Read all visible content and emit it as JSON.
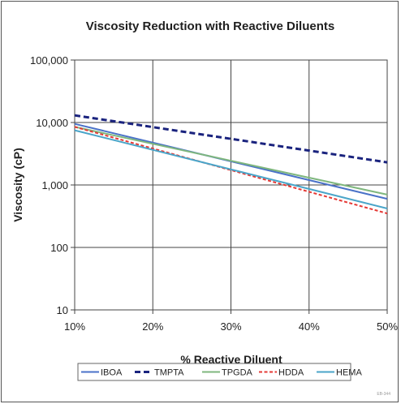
{
  "chart_data": {
    "type": "line",
    "title": "Viscosity Reduction with Reactive Diluents",
    "xlabel": "% Reactive Diluent",
    "ylabel": "Viscosity (cP)",
    "x": [
      10,
      50
    ],
    "xlim": [
      10,
      50
    ],
    "ylim": [
      10,
      100000
    ],
    "yscale": "log",
    "grid": true,
    "legend_position": "bottom",
    "xticks": [
      "10%",
      "20%",
      "30%",
      "40%",
      "50%"
    ],
    "yticks": [
      "10",
      "100",
      "1,000",
      "10,000",
      "100,000"
    ],
    "series": [
      {
        "name": "IBOA",
        "values": [
          9500,
          600
        ],
        "color": "#4a72c8",
        "dash": "solid"
      },
      {
        "name": "TMPTA",
        "values": [
          13000,
          2300
        ],
        "color": "#1a237e",
        "dash": "dashed"
      },
      {
        "name": "TPGDA",
        "values": [
          8500,
          700
        ],
        "color": "#7fb77e",
        "dash": "solid"
      },
      {
        "name": "HDDA",
        "values": [
          8500,
          350
        ],
        "color": "#e53935",
        "dash": "dotted"
      },
      {
        "name": "HEMA",
        "values": [
          7500,
          420
        ],
        "color": "#4aa5c9",
        "dash": "solid"
      }
    ]
  },
  "footer_code": "EB-344"
}
